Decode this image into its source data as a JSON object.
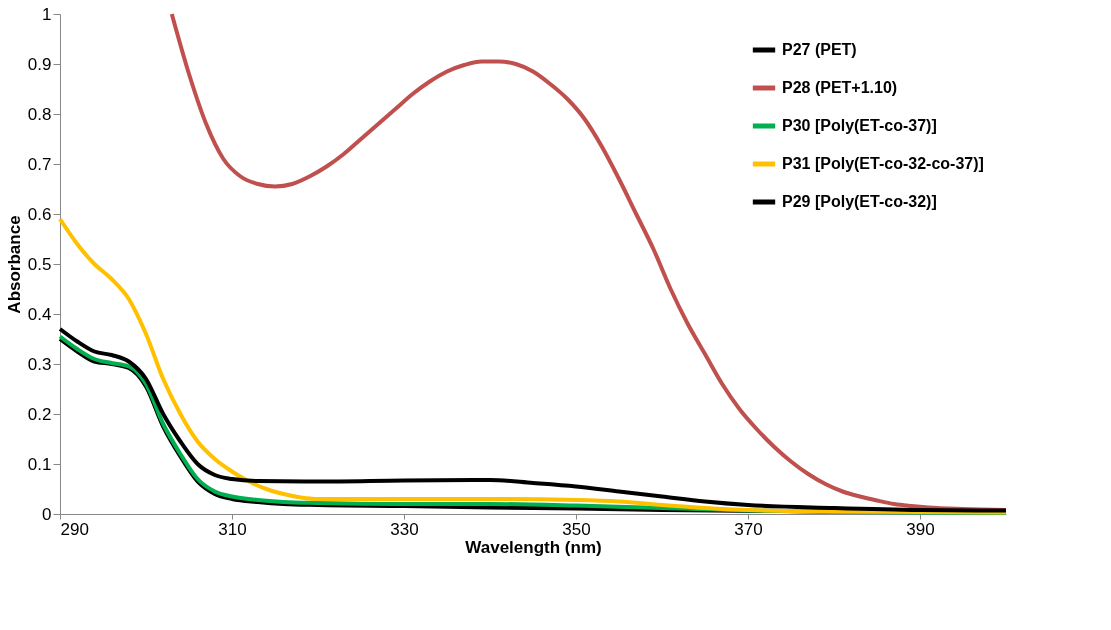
{
  "chart_data": {
    "type": "line",
    "xlabel": "Wavelength (nm)",
    "ylabel": "Absorbance",
    "xlim": [
      290,
      400
    ],
    "xticks": [
      290,
      310,
      330,
      350,
      370,
      390
    ],
    "ylim": [
      0,
      1
    ],
    "yticks": [
      0,
      0.1,
      0.2,
      0.3,
      0.4,
      0.5,
      0.6,
      0.7,
      0.8,
      0.9,
      1
    ],
    "grid": false,
    "legend": "top right",
    "marker": "none",
    "line_style": "solid",
    "series": [
      {
        "name": "P27 (PET)",
        "color": "#000000",
        "x": [
          290,
          292,
          294,
          296,
          298,
          300,
          302,
          304,
          306,
          308,
          310,
          313,
          316,
          320,
          330,
          340,
          350,
          360,
          380,
          400
        ],
        "values": [
          0.35,
          0.325,
          0.305,
          0.3,
          0.292,
          0.255,
          0.175,
          0.115,
          0.065,
          0.04,
          0.03,
          0.024,
          0.02,
          0.018,
          0.016,
          0.013,
          0.011,
          0.008,
          0.005,
          0.004
        ]
      },
      {
        "name": "P28 (PET+1.10)",
        "color": "#c0504d",
        "x": [
          303,
          305,
          307,
          309,
          311,
          313,
          315,
          317,
          319,
          321,
          323,
          325,
          327,
          329,
          331,
          333,
          335,
          337,
          339,
          341,
          343,
          345,
          347,
          349,
          351,
          353,
          355,
          357,
          359,
          361,
          363,
          365,
          367,
          369,
          371,
          373,
          375,
          377,
          379,
          381,
          383,
          385,
          387,
          389,
          391,
          395,
          400
        ],
        "values": [
          1.0,
          0.88,
          0.78,
          0.71,
          0.675,
          0.66,
          0.655,
          0.66,
          0.675,
          0.695,
          0.72,
          0.75,
          0.78,
          0.81,
          0.84,
          0.865,
          0.885,
          0.898,
          0.905,
          0.905,
          0.9,
          0.885,
          0.86,
          0.83,
          0.79,
          0.735,
          0.67,
          0.6,
          0.53,
          0.45,
          0.38,
          0.32,
          0.26,
          0.21,
          0.17,
          0.135,
          0.105,
          0.08,
          0.06,
          0.045,
          0.035,
          0.027,
          0.02,
          0.016,
          0.013,
          0.01,
          0.008
        ]
      },
      {
        "name": "P30 [Poly(ET-co-37)]",
        "color": "#00b050",
        "x": [
          290,
          292,
          294,
          296,
          298,
          300,
          302,
          304,
          306,
          308,
          310,
          313,
          316,
          320,
          330,
          340,
          350,
          360,
          370,
          380,
          400
        ],
        "values": [
          0.355,
          0.33,
          0.31,
          0.302,
          0.295,
          0.26,
          0.18,
          0.12,
          0.07,
          0.045,
          0.035,
          0.028,
          0.024,
          0.022,
          0.02,
          0.02,
          0.017,
          0.012,
          0.007,
          0.004,
          0.002
        ]
      },
      {
        "name": "P31 [Poly(ET-co-32-co-37)]",
        "color": "#ffc000",
        "x": [
          290,
          292,
          294,
          296,
          298,
          300,
          302,
          304,
          306,
          308,
          310,
          312,
          314,
          316,
          318,
          320,
          325,
          330,
          340,
          350,
          355,
          360,
          365,
          370,
          380,
          400
        ],
        "values": [
          0.59,
          0.54,
          0.5,
          0.47,
          0.43,
          0.36,
          0.27,
          0.2,
          0.145,
          0.11,
          0.085,
          0.065,
          0.05,
          0.04,
          0.033,
          0.03,
          0.03,
          0.03,
          0.03,
          0.028,
          0.025,
          0.018,
          0.012,
          0.008,
          0.005,
          0.003
        ]
      },
      {
        "name": "P29 [Poly(ET-co-32)]",
        "color": "#000000",
        "x": [
          290,
          292,
          294,
          296,
          298,
          300,
          302,
          304,
          306,
          308,
          310,
          313,
          320,
          330,
          340,
          345,
          350,
          355,
          360,
          365,
          370,
          380,
          390,
          400
        ],
        "values": [
          0.37,
          0.345,
          0.325,
          0.318,
          0.305,
          0.27,
          0.2,
          0.145,
          0.1,
          0.078,
          0.07,
          0.066,
          0.065,
          0.067,
          0.068,
          0.062,
          0.055,
          0.045,
          0.035,
          0.025,
          0.018,
          0.012,
          0.008,
          0.007
        ]
      }
    ]
  }
}
